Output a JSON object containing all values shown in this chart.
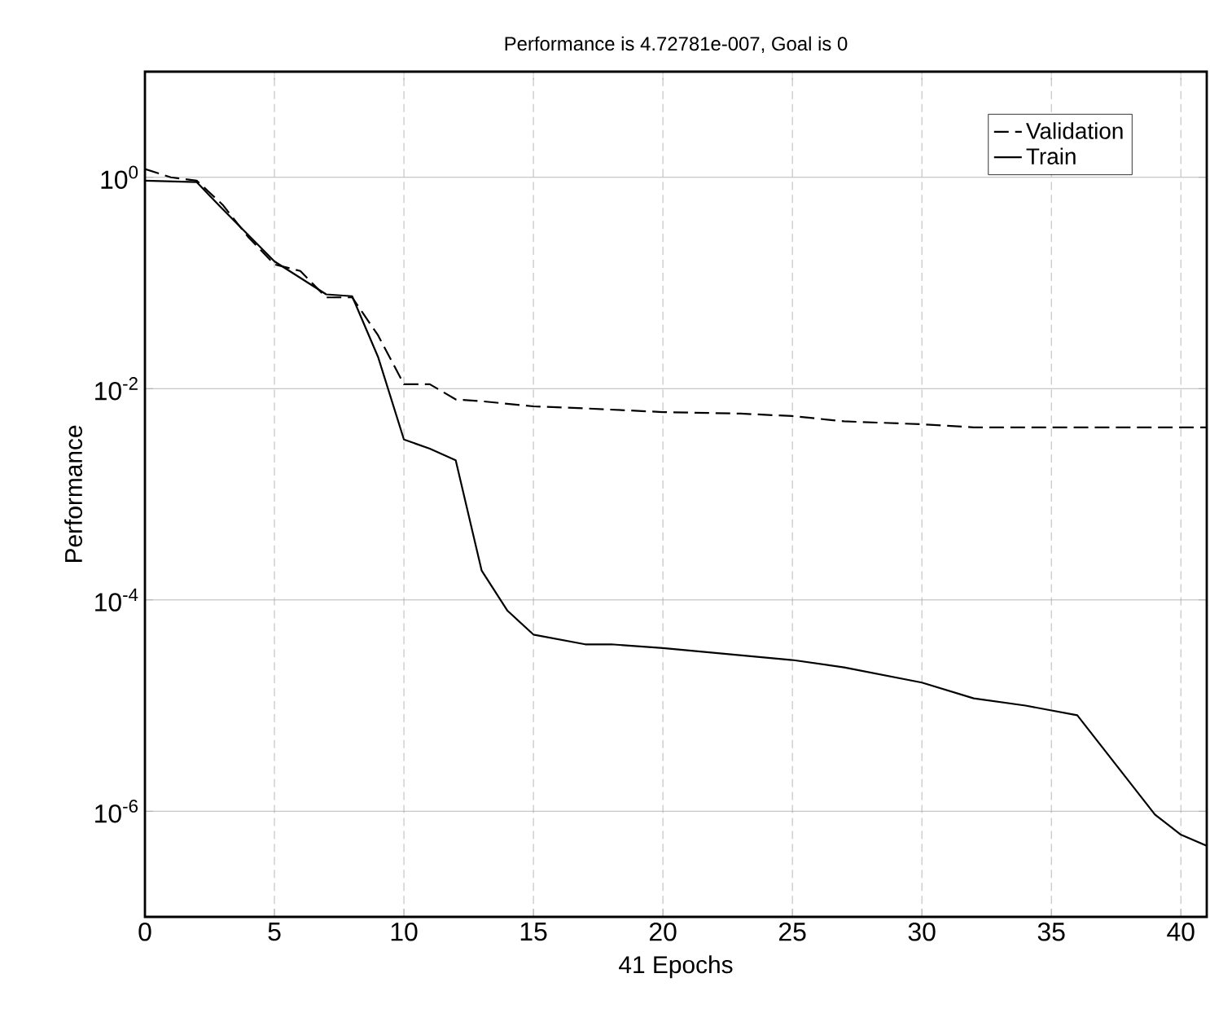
{
  "chart_data": {
    "type": "line",
    "title": "Performance is 4.72781e-007, Goal is 0",
    "xlabel": "41 Epochs",
    "ylabel": "Performance",
    "log": "y",
    "grid": true,
    "legend": "top right",
    "xlim": [
      0,
      41
    ],
    "xticks": [
      0,
      5,
      10,
      15,
      20,
      25,
      30,
      35,
      40
    ],
    "ylim": [
      1e-07,
      10
    ],
    "yticks": [
      {
        "value": 1,
        "label": "10$^{0}$"
      },
      {
        "value": 0.01,
        "label": "10$^{-2}$"
      },
      {
        "value": 0.0001,
        "label": "10$^{-4}$"
      },
      {
        "value": 1e-06,
        "label": "10$^{-6}$"
      }
    ],
    "series": [
      {
        "name": "Validation",
        "color": "#000000",
        "line_style": "dashed",
        "x": [
          0,
          1,
          2,
          3,
          4,
          5,
          6,
          7,
          8,
          9,
          10,
          11,
          12,
          13,
          15,
          17,
          20,
          23,
          25,
          27,
          30,
          32,
          41
        ],
        "values": [
          1.2,
          1.0,
          0.93,
          0.55,
          0.27,
          0.15,
          0.13,
          0.073,
          0.073,
          0.032,
          0.011,
          0.011,
          0.0079,
          0.0076,
          0.0068,
          0.0065,
          0.006,
          0.0058,
          0.0055,
          0.0049,
          0.0046,
          0.0043,
          0.0043
        ]
      },
      {
        "name": "Train",
        "color": "#000000",
        "line_style": "solid",
        "x": [
          0,
          2,
          3,
          5,
          7,
          8,
          9,
          10,
          11,
          12,
          13,
          14,
          15,
          17,
          18,
          20,
          25,
          27,
          30,
          32,
          34,
          36,
          39,
          40,
          41
        ],
        "values": [
          0.93,
          0.9,
          0.5,
          0.16,
          0.078,
          0.075,
          0.02,
          0.0033,
          0.0027,
          0.0021,
          0.00019,
          7.9e-05,
          4.7e-05,
          3.8e-05,
          3.8e-05,
          3.5e-05,
          2.7e-05,
          2.3e-05,
          1.65e-05,
          1.17e-05,
          1e-05,
          8.1e-06,
          9.3e-07,
          6e-07,
          4.7e-07
        ]
      }
    ]
  }
}
